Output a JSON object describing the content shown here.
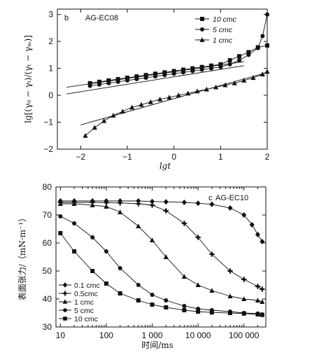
{
  "chart_data": [
    {
      "type": "line",
      "panel_label": "b",
      "annotation": "AG-EC08",
      "xlabel": "lgt",
      "ylabel": "lg[(γ₀ − γₜ)/(γₜ − γₘ)]",
      "xlim": [
        -2.5,
        2
      ],
      "ylim": [
        -2,
        3.2
      ],
      "xticks": [
        "−2",
        "−1",
        "0",
        "1",
        "2"
      ],
      "yticks": [
        "−2",
        "−1",
        "0",
        "1",
        "2",
        "3"
      ],
      "legend_position": "top-right",
      "series": [
        {
          "name": "10 cmc",
          "marker": "square",
          "x": [
            -1.8,
            -1.6,
            -1.4,
            -1.2,
            -1.0,
            -0.8,
            -0.6,
            -0.4,
            -0.2,
            0.0,
            0.2,
            0.4,
            0.6,
            0.8,
            1.0,
            1.2,
            1.4,
            1.6,
            1.8,
            2.0
          ],
          "y": [
            0.45,
            0.5,
            0.55,
            0.6,
            0.65,
            0.7,
            0.75,
            0.8,
            0.85,
            0.9,
            0.95,
            1.0,
            1.05,
            1.1,
            1.15,
            1.3,
            1.45,
            1.6,
            1.78,
            1.85
          ]
        },
        {
          "name": "5 cmc",
          "marker": "circle",
          "x": [
            -1.8,
            -1.6,
            -1.4,
            -1.2,
            -1.0,
            -0.8,
            -0.6,
            -0.4,
            -0.2,
            0.0,
            0.2,
            0.4,
            0.6,
            0.8,
            1.0,
            1.2,
            1.4,
            1.6,
            1.8,
            1.9,
            2.0
          ],
          "y": [
            0.35,
            0.4,
            0.45,
            0.5,
            0.55,
            0.6,
            0.65,
            0.7,
            0.75,
            0.8,
            0.85,
            0.9,
            0.95,
            1.0,
            1.05,
            1.15,
            1.3,
            1.5,
            1.75,
            2.2,
            3.0
          ]
        },
        {
          "name": "1 cmc",
          "marker": "triangle",
          "x": [
            -1.9,
            -1.7,
            -1.5,
            -1.3,
            -1.1,
            -0.9,
            -0.7,
            -0.5,
            -0.3,
            -0.1,
            0.1,
            0.3,
            0.5,
            0.7,
            0.9,
            1.1,
            1.3,
            1.5,
            1.7,
            1.9,
            2.0
          ],
          "y": [
            -1.5,
            -1.2,
            -0.95,
            -0.75,
            -0.6,
            -0.45,
            -0.35,
            -0.25,
            -0.15,
            -0.08,
            0.0,
            0.07,
            0.15,
            0.22,
            0.3,
            0.38,
            0.45,
            0.55,
            0.65,
            0.78,
            0.88
          ]
        }
      ],
      "fit_lines": [
        {
          "x": [
            -2.3,
            1.5
          ],
          "y": [
            0.3,
            1.25
          ]
        },
        {
          "x": [
            -2.3,
            1.5
          ],
          "y": [
            0.05,
            1.1
          ]
        },
        {
          "x": [
            -2.0,
            2.0
          ],
          "y": [
            -1.1,
            0.85
          ]
        }
      ]
    },
    {
      "type": "line",
      "panel_label": "c",
      "annotation": "AG-EC10",
      "xlabel": "时间/ms",
      "ylabel": "表面张力/（mN·m⁻¹）",
      "xscale": "log",
      "xlim": [
        8,
        300000
      ],
      "ylim": [
        30,
        80
      ],
      "xticks": [
        "10",
        "100",
        "1 000",
        "10 000",
        "100 000"
      ],
      "yticks": [
        "30",
        "40",
        "50",
        "60",
        "70",
        "80"
      ],
      "legend_position": "bottom-left",
      "series": [
        {
          "name": "0.1 cmc",
          "marker": "diamond",
          "x": [
            10,
            20,
            50,
            100,
            200,
            500,
            1000,
            2000,
            5000,
            10000,
            20000,
            50000,
            100000,
            150000,
            200000,
            250000
          ],
          "y": [
            75,
            75,
            75,
            75,
            75,
            75,
            74.8,
            74.7,
            74.5,
            74.2,
            73.8,
            72.5,
            70,
            66.5,
            63,
            60.5
          ]
        },
        {
          "name": "0.5cmc",
          "marker": "star",
          "x": [
            10,
            20,
            50,
            100,
            200,
            500,
            1000,
            2000,
            5000,
            10000,
            20000,
            50000,
            100000,
            200000,
            250000
          ],
          "y": [
            74.5,
            74.5,
            74.5,
            74.4,
            74.3,
            74,
            73.5,
            71.5,
            67,
            62,
            56,
            50,
            47,
            44.5,
            43.5
          ]
        },
        {
          "name": "1 cmc",
          "marker": "triangle",
          "x": [
            10,
            20,
            50,
            100,
            200,
            500,
            1000,
            2000,
            5000,
            10000,
            20000,
            50000,
            100000,
            200000,
            250000
          ],
          "y": [
            74,
            74,
            73.5,
            73,
            71,
            66,
            61,
            55,
            48,
            45,
            43,
            41,
            40,
            39.5,
            39
          ]
        },
        {
          "name": "5 cmc",
          "marker": "circle",
          "x": [
            10,
            20,
            50,
            100,
            200,
            500,
            1000,
            2000,
            5000,
            10000,
            20000,
            50000,
            100000,
            200000,
            250000
          ],
          "y": [
            69.5,
            67,
            62,
            57,
            51,
            45,
            41.5,
            39.5,
            37.5,
            36.5,
            36,
            35.5,
            35,
            34.8,
            34.5
          ]
        },
        {
          "name": "10 cmc",
          "marker": "square",
          "x": [
            10,
            20,
            50,
            100,
            200,
            500,
            1000,
            2000,
            5000,
            10000,
            20000,
            50000,
            100000,
            200000,
            250000
          ],
          "y": [
            63.5,
            57,
            50,
            45.5,
            42,
            39.5,
            38,
            37,
            36,
            35.5,
            35.2,
            35,
            34.8,
            34.5,
            34.3
          ]
        }
      ]
    }
  ]
}
